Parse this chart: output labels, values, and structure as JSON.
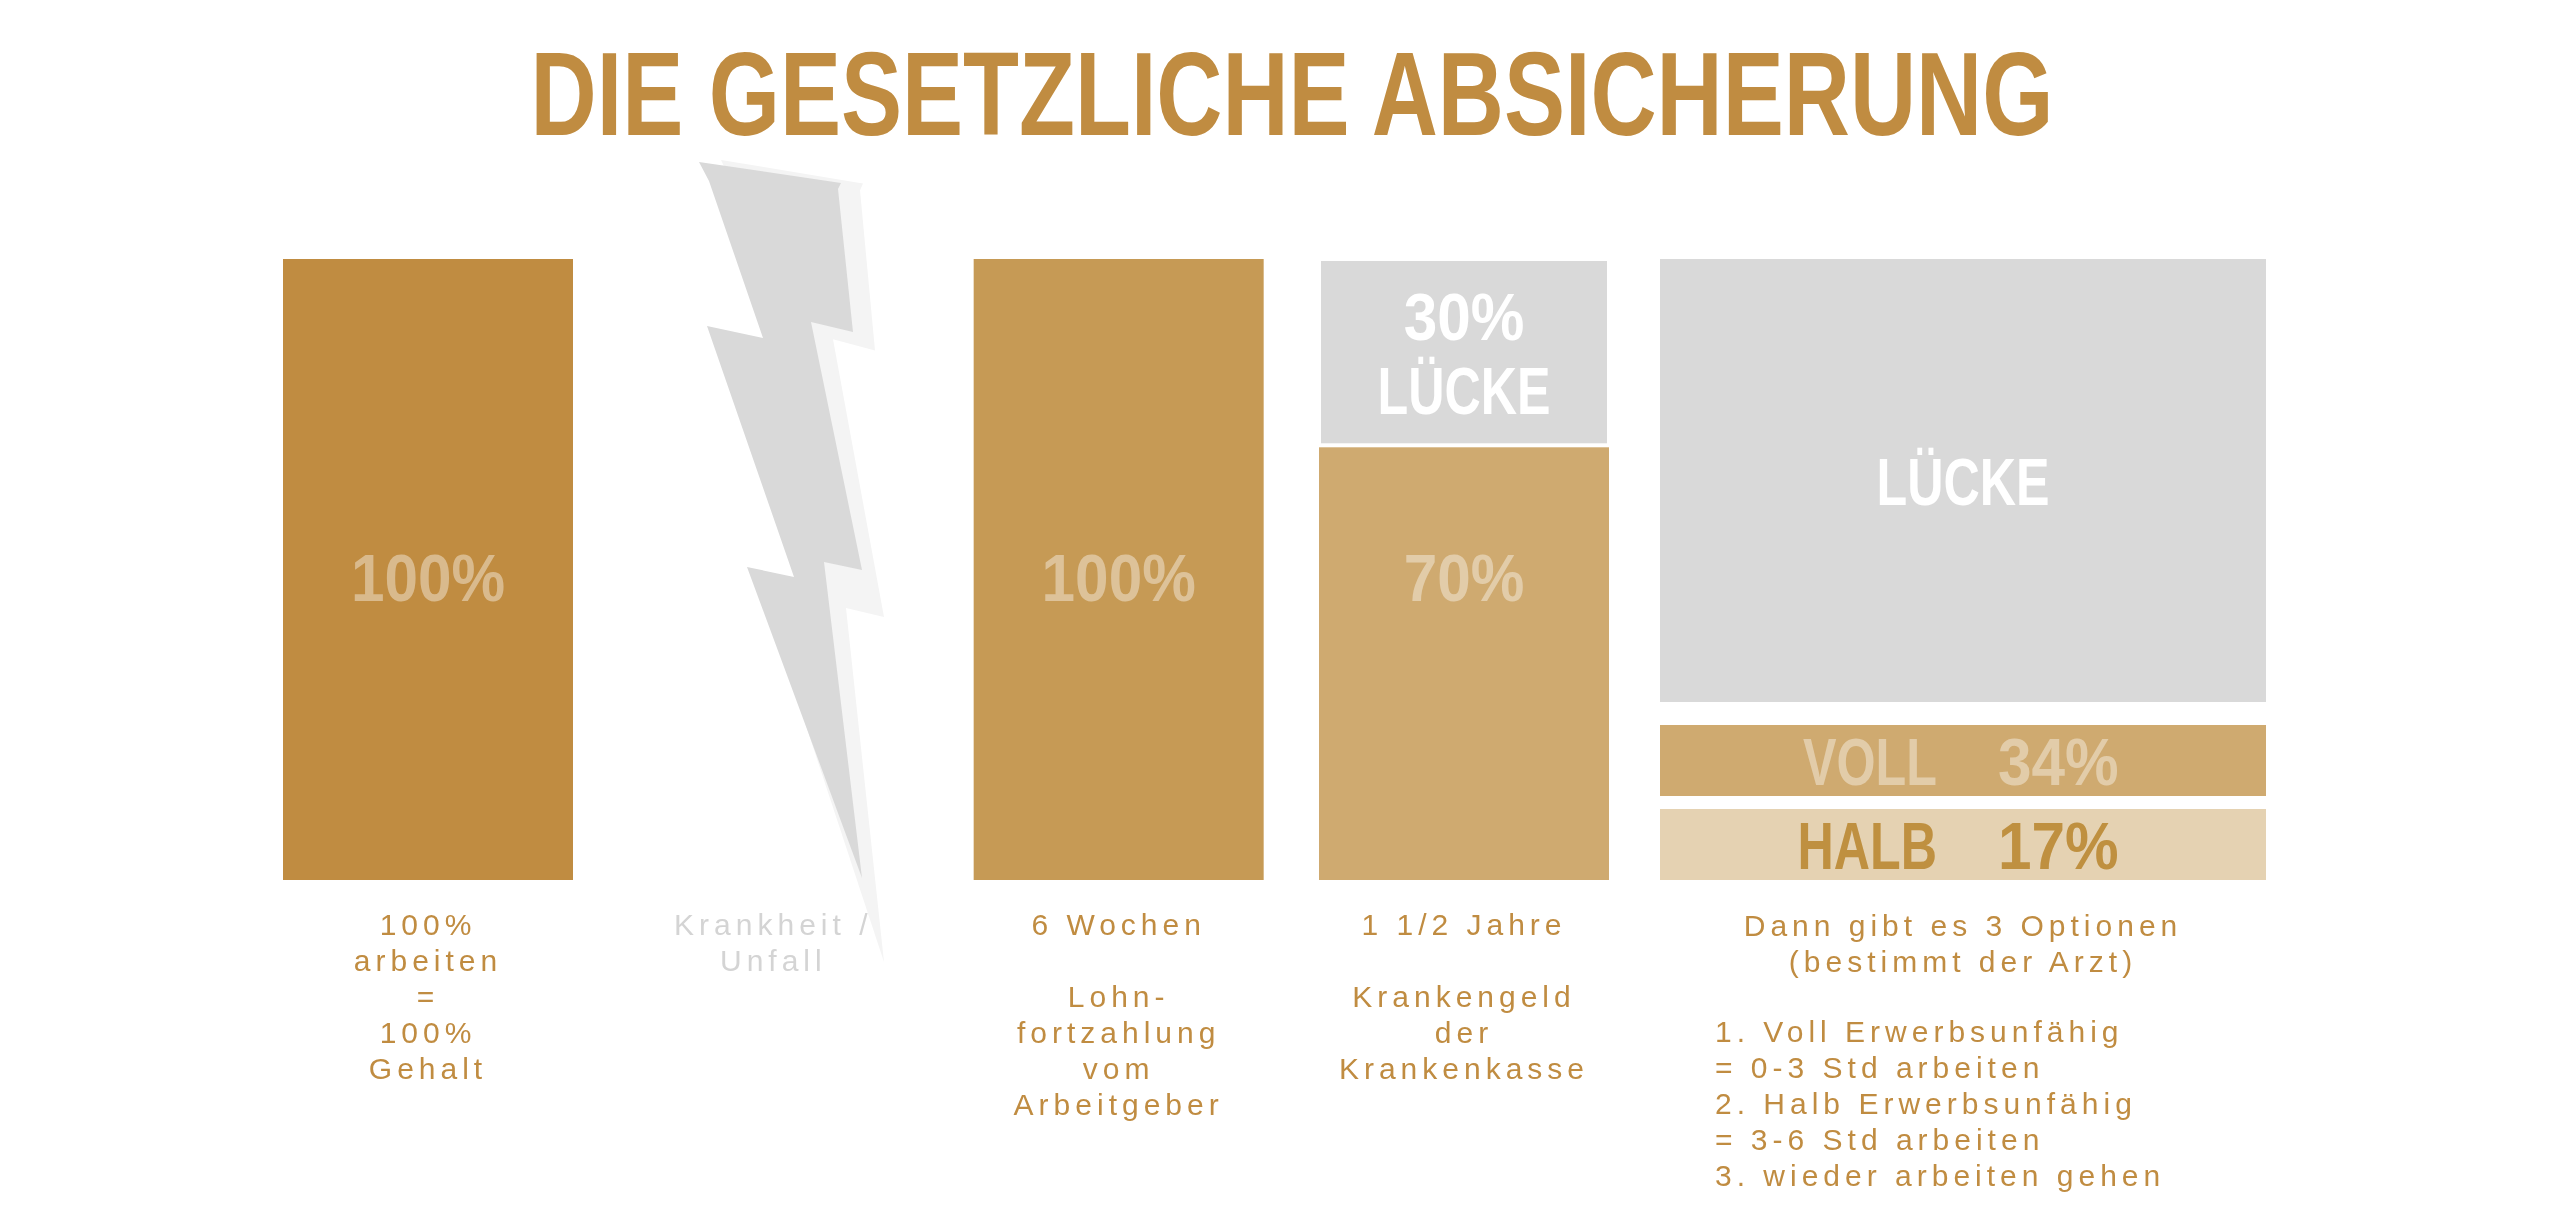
{
  "chart_data": [
    {
      "type": "bar",
      "title": "DIE GESETZLICHE ABSICHERUNG",
      "categories": [
        "100%\narbeiten\n=\n100%\nGehalt",
        "Krankheit /\nUnfall",
        "6 Wochen\n\nLohn-\nfortzahlung\nvom\nArbeitgeber",
        "1 1/2 Jahre\n\nKrankengeld\nder\nKrankenkasse"
      ],
      "stacked": true,
      "series": [
        {
          "colors": [
            "#c08c41",
            null,
            "#c69a55",
            "#cfaa70"
          ],
          "values": [
            100,
            null,
            100,
            70
          ],
          "value_labels": [
            "100%",
            null,
            "100%",
            "70%"
          ]
        },
        {
          "name": "LÜCKE",
          "color": "#d9d9d9",
          "values": [
            null,
            null,
            null,
            30
          ],
          "value_labels": [
            null,
            null,
            null,
            "30%"
          ]
        }
      ]
    },
    {
      "type": "other",
      "categories": [
        "LÜCKE",
        "VOLL",
        "HALB"
      ],
      "value_labels": [
        null,
        "34%",
        "17%"
      ],
      "colors": [
        "#d9d9d9",
        "#cfaa70",
        "#e5d2b2"
      ],
      "xlabel": "Dann gibt es 3 Optionen\n(bestimmt der Arzt)",
      "annotations": [
        "1. Voll Erwerbsunfähig\n= 0-3 Std arbeiten\n2. Halb Erwerbsunfähig\n= 3-6 Std arbeiten\n3. wieder arbeiten gehen"
      ]
    }
  ]
}
